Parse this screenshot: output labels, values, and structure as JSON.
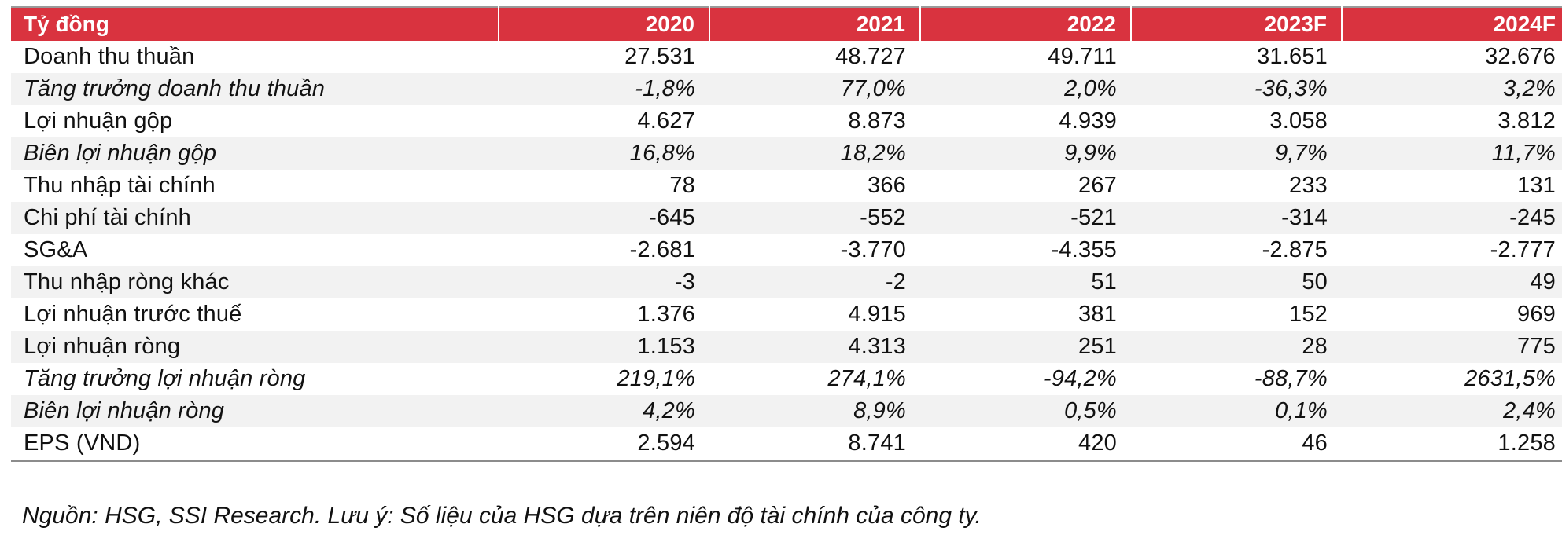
{
  "table": {
    "header": {
      "label": "Tỷ đồng",
      "years": [
        "2020",
        "2021",
        "2022",
        "2023F",
        "2024F"
      ]
    },
    "rows": [
      {
        "label": "Doanh thu thuần",
        "italic": false,
        "shaded": false,
        "values": [
          "27.531",
          "48.727",
          "49.711",
          "31.651",
          "32.676"
        ]
      },
      {
        "label": "Tăng trưởng doanh thu thuần",
        "italic": true,
        "shaded": true,
        "values": [
          "-1,8%",
          "77,0%",
          "2,0%",
          "-36,3%",
          "3,2%"
        ]
      },
      {
        "label": "Lợi nhuận gộp",
        "italic": false,
        "shaded": false,
        "values": [
          "4.627",
          "8.873",
          "4.939",
          "3.058",
          "3.812"
        ]
      },
      {
        "label": "Biên lợi nhuận gộp",
        "italic": true,
        "shaded": true,
        "values": [
          "16,8%",
          "18,2%",
          "9,9%",
          "9,7%",
          "11,7%"
        ]
      },
      {
        "label": "Thu nhập tài chính",
        "italic": false,
        "shaded": false,
        "values": [
          "78",
          "366",
          "267",
          "233",
          "131"
        ]
      },
      {
        "label": "Chi phí tài chính",
        "italic": false,
        "shaded": true,
        "values": [
          "-645",
          "-552",
          "-521",
          "-314",
          "-245"
        ]
      },
      {
        "label": "SG&A",
        "italic": false,
        "shaded": false,
        "values": [
          "-2.681",
          "-3.770",
          "-4.355",
          "-2.875",
          "-2.777"
        ]
      },
      {
        "label": "Thu nhập ròng khác",
        "italic": false,
        "shaded": true,
        "values": [
          "-3",
          "-2",
          "51",
          "50",
          "49"
        ]
      },
      {
        "label": "Lợi nhuận trước thuế",
        "italic": false,
        "shaded": false,
        "values": [
          "1.376",
          "4.915",
          "381",
          "152",
          "969"
        ]
      },
      {
        "label": "Lợi nhuận ròng",
        "italic": false,
        "shaded": true,
        "values": [
          "1.153",
          "4.313",
          "251",
          "28",
          "775"
        ]
      },
      {
        "label": "Tăng trưởng lợi nhuận ròng",
        "italic": true,
        "shaded": false,
        "values": [
          "219,1%",
          "274,1%",
          "-94,2%",
          "-88,7%",
          "2631,5%"
        ]
      },
      {
        "label": "Biên lợi nhuận ròng",
        "italic": true,
        "shaded": true,
        "values": [
          "4,2%",
          "8,9%",
          "0,5%",
          "0,1%",
          "2,4%"
        ]
      },
      {
        "label": "EPS (VND)",
        "italic": false,
        "shaded": false,
        "values": [
          "2.594",
          "8.741",
          "420",
          "46",
          "1.258"
        ]
      }
    ]
  },
  "source_note": "Nguồn: HSG, SSI Research. Lưu ý: Số liệu của HSG dựa trên niên độ tài chính của công ty.",
  "colors": {
    "header_bg": "#d9333f",
    "header_text": "#ffffff",
    "shaded_row": "#f2f2f2"
  }
}
